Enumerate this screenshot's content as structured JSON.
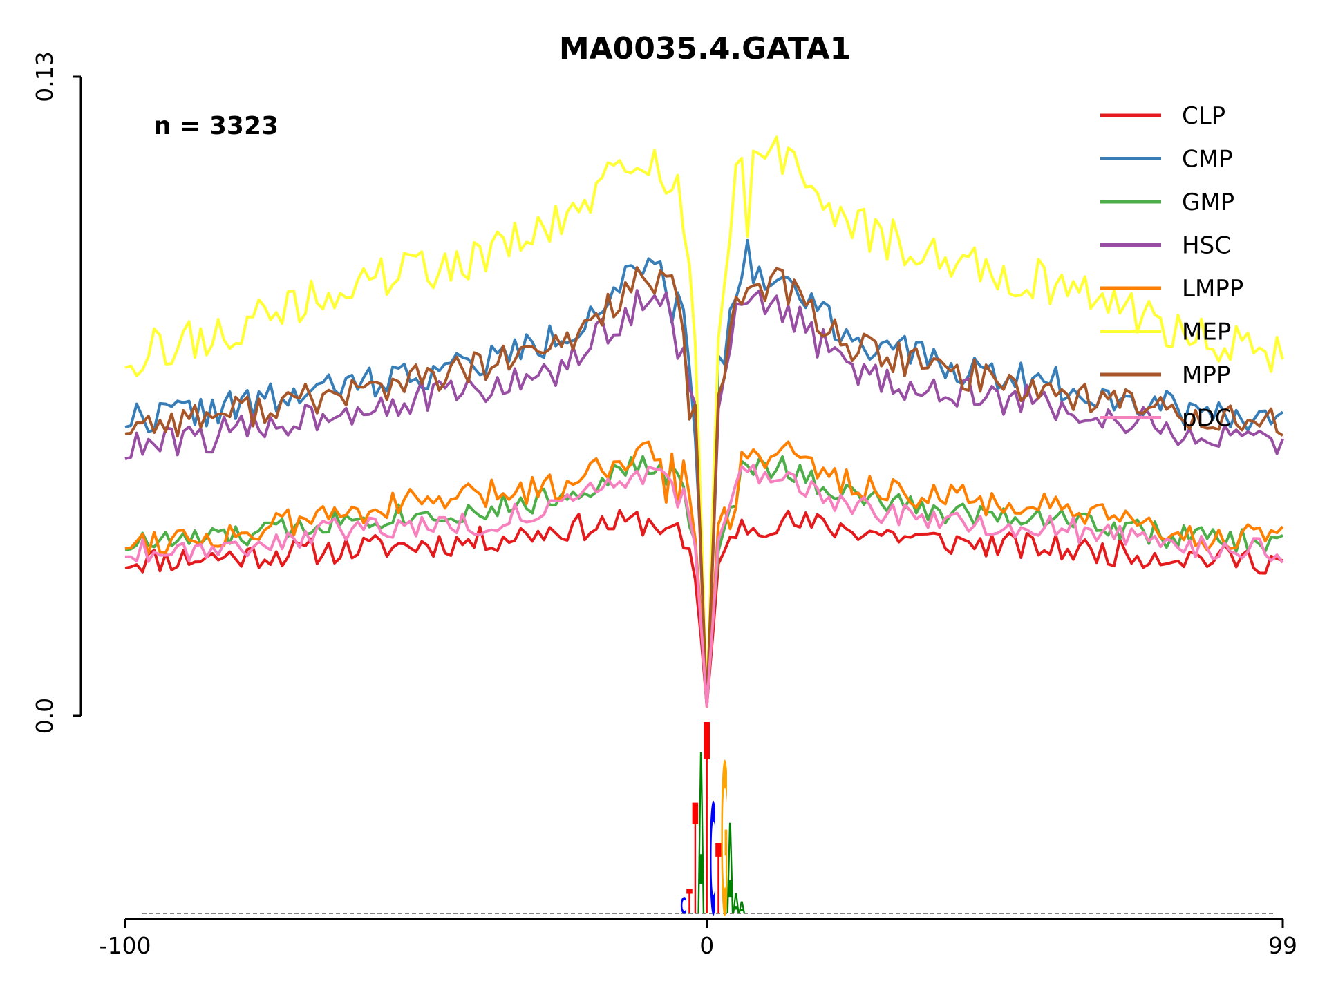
{
  "chart_data": {
    "type": "line",
    "title": "MA0035.4.GATA1",
    "annotation": "n = 3323",
    "xlabel": "",
    "ylabel": "",
    "xlim": [
      -100,
      99
    ],
    "ylim": [
      0.0,
      0.13
    ],
    "x_ticks": [
      "-100",
      "0",
      "99"
    ],
    "y_ticks": [
      "0.0",
      "0.13"
    ],
    "legend_position": "top-right",
    "grid": false,
    "x_start": -100,
    "x_end": 99,
    "series": [
      {
        "name": "CLP",
        "color": "#e41a1c",
        "profile": [
          [
            -100,
            0.0315
          ],
          [
            -80,
            0.0325
          ],
          [
            -60,
            0.034
          ],
          [
            -40,
            0.0355
          ],
          [
            -25,
            0.038
          ],
          [
            -12,
            0.0395
          ],
          [
            -5,
            0.0385
          ],
          [
            -2,
            0.03
          ],
          [
            0,
            0.002
          ],
          [
            2,
            0.03
          ],
          [
            5,
            0.0385
          ],
          [
            12,
            0.0395
          ],
          [
            25,
            0.038
          ],
          [
            40,
            0.0355
          ],
          [
            60,
            0.034
          ],
          [
            80,
            0.0325
          ],
          [
            99,
            0.0315
          ]
        ],
        "noise": 0.0028,
        "seed": 11
      },
      {
        "name": "CMP",
        "color": "#377eb8",
        "profile": [
          [
            -100,
            0.0605
          ],
          [
            -80,
            0.063
          ],
          [
            -60,
            0.0675
          ],
          [
            -40,
            0.0715
          ],
          [
            -25,
            0.077
          ],
          [
            -12,
            0.0905
          ],
          [
            -5,
            0.088
          ],
          [
            -2,
            0.065
          ],
          [
            0,
            0.002
          ],
          [
            2,
            0.065
          ],
          [
            5,
            0.088
          ],
          [
            12,
            0.09
          ],
          [
            25,
            0.077
          ],
          [
            40,
            0.0715
          ],
          [
            60,
            0.0675
          ],
          [
            80,
            0.063
          ],
          [
            99,
            0.0605
          ]
        ],
        "noise": 0.0035,
        "seed": 22
      },
      {
        "name": "GMP",
        "color": "#4daf4a",
        "profile": [
          [
            -100,
            0.035
          ],
          [
            -80,
            0.0365
          ],
          [
            -60,
            0.0405
          ],
          [
            -40,
            0.0415
          ],
          [
            -25,
            0.0445
          ],
          [
            -12,
            0.051
          ],
          [
            -5,
            0.049
          ],
          [
            -2,
            0.036
          ],
          [
            0,
            0.002
          ],
          [
            2,
            0.036
          ],
          [
            5,
            0.049
          ],
          [
            12,
            0.051
          ],
          [
            25,
            0.0445
          ],
          [
            40,
            0.0415
          ],
          [
            60,
            0.0405
          ],
          [
            80,
            0.0365
          ],
          [
            99,
            0.035
          ]
        ],
        "noise": 0.0025,
        "seed": 33
      },
      {
        "name": "HSC",
        "color": "#984ea3",
        "profile": [
          [
            -100,
            0.054
          ],
          [
            -80,
            0.058
          ],
          [
            -60,
            0.063
          ],
          [
            -40,
            0.066
          ],
          [
            -25,
            0.07
          ],
          [
            -12,
            0.084
          ],
          [
            -5,
            0.082
          ],
          [
            -2,
            0.06
          ],
          [
            0,
            0.002
          ],
          [
            2,
            0.06
          ],
          [
            5,
            0.082
          ],
          [
            12,
            0.084
          ],
          [
            25,
            0.07
          ],
          [
            40,
            0.066
          ],
          [
            60,
            0.063
          ],
          [
            80,
            0.058
          ],
          [
            99,
            0.054
          ]
        ],
        "noise": 0.0035,
        "seed": 44
      },
      {
        "name": "LMPP",
        "color": "#ff7f00",
        "profile": [
          [
            -100,
            0.0355
          ],
          [
            -80,
            0.037
          ],
          [
            -60,
            0.042
          ],
          [
            -40,
            0.0445
          ],
          [
            -25,
            0.047
          ],
          [
            -12,
            0.054
          ],
          [
            -5,
            0.052
          ],
          [
            -2,
            0.038
          ],
          [
            0,
            0.002
          ],
          [
            2,
            0.038
          ],
          [
            5,
            0.052
          ],
          [
            12,
            0.054
          ],
          [
            25,
            0.047
          ],
          [
            40,
            0.0445
          ],
          [
            60,
            0.042
          ],
          [
            80,
            0.037
          ],
          [
            99,
            0.0355
          ]
        ],
        "noise": 0.003,
        "seed": 55
      },
      {
        "name": "MEP",
        "color": "#ffff33",
        "profile": [
          [
            -100,
            0.073
          ],
          [
            -80,
            0.079
          ],
          [
            -60,
            0.088
          ],
          [
            -40,
            0.093
          ],
          [
            -25,
            0.1
          ],
          [
            -12,
            0.114
          ],
          [
            -5,
            0.11
          ],
          [
            -2,
            0.08
          ],
          [
            0,
            0.002
          ],
          [
            2,
            0.08
          ],
          [
            5,
            0.11
          ],
          [
            12,
            0.114
          ],
          [
            25,
            0.1
          ],
          [
            40,
            0.093
          ],
          [
            60,
            0.088
          ],
          [
            80,
            0.079
          ],
          [
            99,
            0.073
          ]
        ],
        "noise": 0.0045,
        "seed": 66
      },
      {
        "name": "MPP",
        "color": "#a65628",
        "profile": [
          [
            -100,
            0.059
          ],
          [
            -80,
            0.062
          ],
          [
            -60,
            0.066
          ],
          [
            -40,
            0.0705
          ],
          [
            -25,
            0.075
          ],
          [
            -12,
            0.0885
          ],
          [
            -5,
            0.086
          ],
          [
            -2,
            0.063
          ],
          [
            0,
            0.002
          ],
          [
            2,
            0.063
          ],
          [
            5,
            0.086
          ],
          [
            12,
            0.0885
          ],
          [
            25,
            0.075
          ],
          [
            40,
            0.0705
          ],
          [
            60,
            0.066
          ],
          [
            80,
            0.062
          ],
          [
            99,
            0.059
          ]
        ],
        "noise": 0.0035,
        "seed": 77
      },
      {
        "name": "pDC",
        "color": "#f781bf",
        "profile": [
          [
            -100,
            0.0335
          ],
          [
            -80,
            0.0345
          ],
          [
            -60,
            0.0385
          ],
          [
            -40,
            0.039
          ],
          [
            -25,
            0.0425
          ],
          [
            -12,
            0.0495
          ],
          [
            -5,
            0.048
          ],
          [
            -2,
            0.035
          ],
          [
            0,
            0.002
          ],
          [
            2,
            0.035
          ],
          [
            5,
            0.048
          ],
          [
            12,
            0.0495
          ],
          [
            25,
            0.0425
          ],
          [
            40,
            0.039
          ],
          [
            60,
            0.0385
          ],
          [
            80,
            0.0345
          ],
          [
            99,
            0.0335
          ]
        ],
        "noise": 0.0025,
        "seed": 88
      }
    ],
    "motif_logo": {
      "positions": [
        -4,
        -3,
        -2,
        -1,
        0,
        1,
        2,
        3,
        4,
        5,
        6
      ],
      "bases": [
        "C",
        "T",
        "T",
        "A",
        "T",
        "C",
        "T",
        "G",
        "A",
        "A",
        "A"
      ],
      "heights": [
        0.08,
        0.12,
        0.55,
        0.8,
        0.95,
        0.55,
        0.35,
        0.75,
        0.45,
        0.1,
        0.06
      ],
      "base_colors": {
        "A": "#008000",
        "C": "#0000ff",
        "G": "#ffa500",
        "T": "#ff0000"
      }
    }
  }
}
